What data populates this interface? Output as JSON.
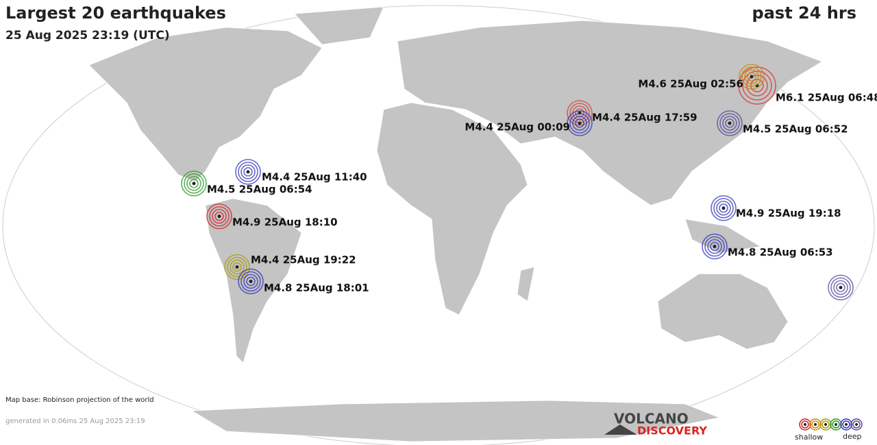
{
  "header": {
    "title": "Largest 20 earthquakes",
    "subtitle": "25 Aug 2025 23:19 (UTC)",
    "period": "past 24 hrs"
  },
  "quakes": [
    {
      "label": "M6.1 25Aug 06:48"
    },
    {
      "label": "M4.6 25Aug 02:56"
    },
    {
      "label": "M4.4 25Aug 17:59"
    },
    {
      "label": "M4.4 25Aug 00:09"
    },
    {
      "label": "M4.5 25Aug 06:52"
    },
    {
      "label": "M4.4 25Aug 11:40"
    },
    {
      "label": "M4.5 25Aug 06:54"
    },
    {
      "label": "M4.9 25Aug 18:10"
    },
    {
      "label": "M4.9 25Aug 19:18"
    },
    {
      "label": "M4.8 25Aug 06:53"
    },
    {
      "label": "M4.4 25Aug 19:22"
    },
    {
      "label": "M4.8 25Aug 18:01"
    }
  ],
  "footer": {
    "map_base": "Map base: Robinson projection of the world",
    "generated": "generated in 0.06ms 25 Aug 2025 23:19"
  },
  "logo": {
    "line1": "VOLCANO",
    "line2": "DISCOVERY"
  },
  "legend": {
    "shallow": "shallow",
    "deep": "deep"
  }
}
